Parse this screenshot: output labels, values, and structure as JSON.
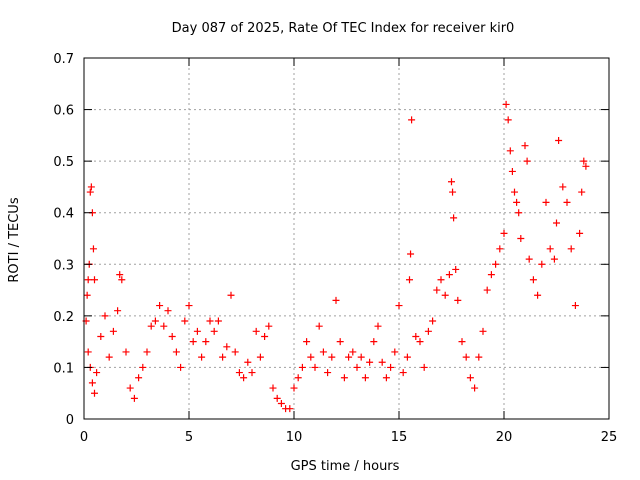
{
  "chart_data": {
    "type": "scatter",
    "title": "Day 087 of 2025, Rate Of TEC Index for receiver kir0",
    "xlabel": "GPS time / hours",
    "ylabel": "ROTI / TECUs",
    "xlim": [
      0,
      25
    ],
    "ylim": [
      0,
      0.7
    ],
    "x_ticks": [
      0,
      5,
      10,
      15,
      20,
      25
    ],
    "x_tick_labels": [
      "0",
      "5",
      "10",
      "15",
      "20",
      "25"
    ],
    "y_ticks": [
      0,
      0.1,
      0.2,
      0.3,
      0.4,
      0.5,
      0.6,
      0.7
    ],
    "y_tick_labels": [
      "0",
      "0.1",
      "0.2",
      "0.3",
      "0.4",
      "0.5",
      "0.6",
      "0.7"
    ],
    "grid": true,
    "marker": "plus",
    "color": "#ff0000",
    "series": [
      {
        "name": "ROTI",
        "points": [
          [
            0.1,
            0.19
          ],
          [
            0.15,
            0.24
          ],
          [
            0.2,
            0.27
          ],
          [
            0.25,
            0.3
          ],
          [
            0.3,
            0.44
          ],
          [
            0.35,
            0.45
          ],
          [
            0.4,
            0.4
          ],
          [
            0.45,
            0.33
          ],
          [
            0.5,
            0.27
          ],
          [
            0.2,
            0.13
          ],
          [
            0.3,
            0.1
          ],
          [
            0.4,
            0.07
          ],
          [
            0.5,
            0.05
          ],
          [
            0.6,
            0.09
          ],
          [
            0.8,
            0.16
          ],
          [
            1.0,
            0.2
          ],
          [
            1.2,
            0.12
          ],
          [
            1.4,
            0.17
          ],
          [
            1.6,
            0.21
          ],
          [
            1.7,
            0.28
          ],
          [
            1.8,
            0.27
          ],
          [
            2.0,
            0.13
          ],
          [
            2.2,
            0.06
          ],
          [
            2.4,
            0.04
          ],
          [
            2.6,
            0.08
          ],
          [
            2.8,
            0.1
          ],
          [
            3.0,
            0.13
          ],
          [
            3.2,
            0.18
          ],
          [
            3.4,
            0.19
          ],
          [
            3.6,
            0.22
          ],
          [
            3.8,
            0.18
          ],
          [
            4.0,
            0.21
          ],
          [
            4.2,
            0.16
          ],
          [
            4.4,
            0.13
          ],
          [
            4.6,
            0.1
          ],
          [
            4.8,
            0.19
          ],
          [
            5.0,
            0.22
          ],
          [
            5.2,
            0.15
          ],
          [
            5.4,
            0.17
          ],
          [
            5.6,
            0.12
          ],
          [
            5.8,
            0.15
          ],
          [
            6.0,
            0.19
          ],
          [
            6.2,
            0.17
          ],
          [
            6.4,
            0.19
          ],
          [
            6.6,
            0.12
          ],
          [
            6.8,
            0.14
          ],
          [
            7.0,
            0.24
          ],
          [
            7.2,
            0.13
          ],
          [
            7.4,
            0.09
          ],
          [
            7.6,
            0.08
          ],
          [
            7.8,
            0.11
          ],
          [
            8.0,
            0.09
          ],
          [
            8.2,
            0.17
          ],
          [
            8.4,
            0.12
          ],
          [
            8.6,
            0.16
          ],
          [
            8.8,
            0.18
          ],
          [
            9.0,
            0.06
          ],
          [
            9.2,
            0.04
          ],
          [
            9.4,
            0.03
          ],
          [
            9.6,
            0.02
          ],
          [
            9.8,
            0.02
          ],
          [
            10.0,
            0.06
          ],
          [
            10.2,
            0.08
          ],
          [
            10.4,
            0.1
          ],
          [
            10.6,
            0.15
          ],
          [
            10.8,
            0.12
          ],
          [
            11.0,
            0.1
          ],
          [
            11.2,
            0.18
          ],
          [
            11.4,
            0.13
          ],
          [
            11.6,
            0.09
          ],
          [
            11.8,
            0.12
          ],
          [
            12.0,
            0.23
          ],
          [
            12.2,
            0.15
          ],
          [
            12.4,
            0.08
          ],
          [
            12.6,
            0.12
          ],
          [
            12.8,
            0.13
          ],
          [
            13.0,
            0.1
          ],
          [
            13.2,
            0.12
          ],
          [
            13.4,
            0.08
          ],
          [
            13.6,
            0.11
          ],
          [
            13.8,
            0.15
          ],
          [
            14.0,
            0.18
          ],
          [
            14.2,
            0.11
          ],
          [
            14.4,
            0.08
          ],
          [
            14.6,
            0.1
          ],
          [
            14.8,
            0.13
          ],
          [
            15.0,
            0.22
          ],
          [
            15.2,
            0.09
          ],
          [
            15.4,
            0.12
          ],
          [
            15.5,
            0.27
          ],
          [
            15.55,
            0.32
          ],
          [
            15.6,
            0.58
          ],
          [
            15.8,
            0.16
          ],
          [
            16.0,
            0.15
          ],
          [
            16.2,
            0.1
          ],
          [
            16.4,
            0.17
          ],
          [
            16.6,
            0.19
          ],
          [
            16.8,
            0.25
          ],
          [
            17.0,
            0.27
          ],
          [
            17.2,
            0.24
          ],
          [
            17.4,
            0.28
          ],
          [
            17.5,
            0.46
          ],
          [
            17.55,
            0.44
          ],
          [
            17.6,
            0.39
          ],
          [
            17.7,
            0.29
          ],
          [
            17.8,
            0.23
          ],
          [
            18.0,
            0.15
          ],
          [
            18.2,
            0.12
          ],
          [
            18.4,
            0.08
          ],
          [
            18.6,
            0.06
          ],
          [
            18.8,
            0.12
          ],
          [
            19.0,
            0.17
          ],
          [
            19.2,
            0.25
          ],
          [
            19.4,
            0.28
          ],
          [
            19.6,
            0.3
          ],
          [
            19.8,
            0.33
          ],
          [
            20.0,
            0.36
          ],
          [
            20.1,
            0.61
          ],
          [
            20.2,
            0.58
          ],
          [
            20.3,
            0.52
          ],
          [
            20.4,
            0.48
          ],
          [
            20.5,
            0.44
          ],
          [
            20.6,
            0.42
          ],
          [
            20.7,
            0.4
          ],
          [
            20.8,
            0.35
          ],
          [
            21.0,
            0.53
          ],
          [
            21.1,
            0.5
          ],
          [
            21.2,
            0.31
          ],
          [
            21.4,
            0.27
          ],
          [
            21.6,
            0.24
          ],
          [
            21.8,
            0.3
          ],
          [
            22.0,
            0.42
          ],
          [
            22.2,
            0.33
          ],
          [
            22.4,
            0.31
          ],
          [
            22.5,
            0.38
          ],
          [
            22.6,
            0.54
          ],
          [
            22.8,
            0.45
          ],
          [
            23.0,
            0.42
          ],
          [
            23.2,
            0.33
          ],
          [
            23.4,
            0.22
          ],
          [
            23.6,
            0.36
          ],
          [
            23.7,
            0.44
          ],
          [
            23.8,
            0.5
          ],
          [
            23.9,
            0.49
          ]
        ]
      }
    ]
  }
}
